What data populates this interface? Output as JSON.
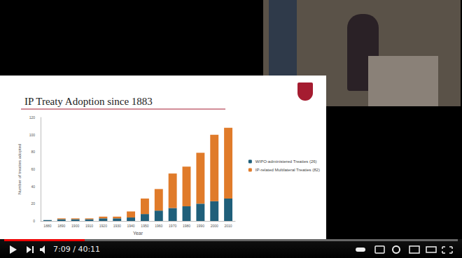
{
  "chart_data": {
    "type": "bar",
    "title": "IP Treaty Adoption since 1883",
    "x_label": "Year",
    "y_label": "Number of treaties adopted",
    "categories": [
      "1880",
      "1890",
      "1900",
      "1910",
      "1920",
      "1930",
      "1940",
      "1950",
      "1960",
      "1970",
      "1980",
      "1990",
      "2000",
      "2010"
    ],
    "series": [
      {
        "name": "WIPO-administered Treaties (26)",
        "color": "#1f5f7a",
        "values": [
          1,
          2,
          2,
          2,
          3,
          3,
          4,
          8,
          12,
          15,
          17,
          20,
          23,
          26
        ]
      },
      {
        "name": "IP-related Multilateral Treaties (82)",
        "color": "#e07b2a",
        "values": [
          0,
          1,
          1,
          1,
          2,
          2,
          7,
          18,
          25,
          40,
          46,
          59,
          77,
          82
        ]
      }
    ],
    "stacked": true,
    "ylim": [
      0,
      120
    ],
    "yticks": [
      0,
      20,
      40,
      60,
      80,
      100,
      120
    ],
    "grid": false,
    "legend": "right"
  },
  "player": {
    "time": "7:09 / 40:11"
  }
}
